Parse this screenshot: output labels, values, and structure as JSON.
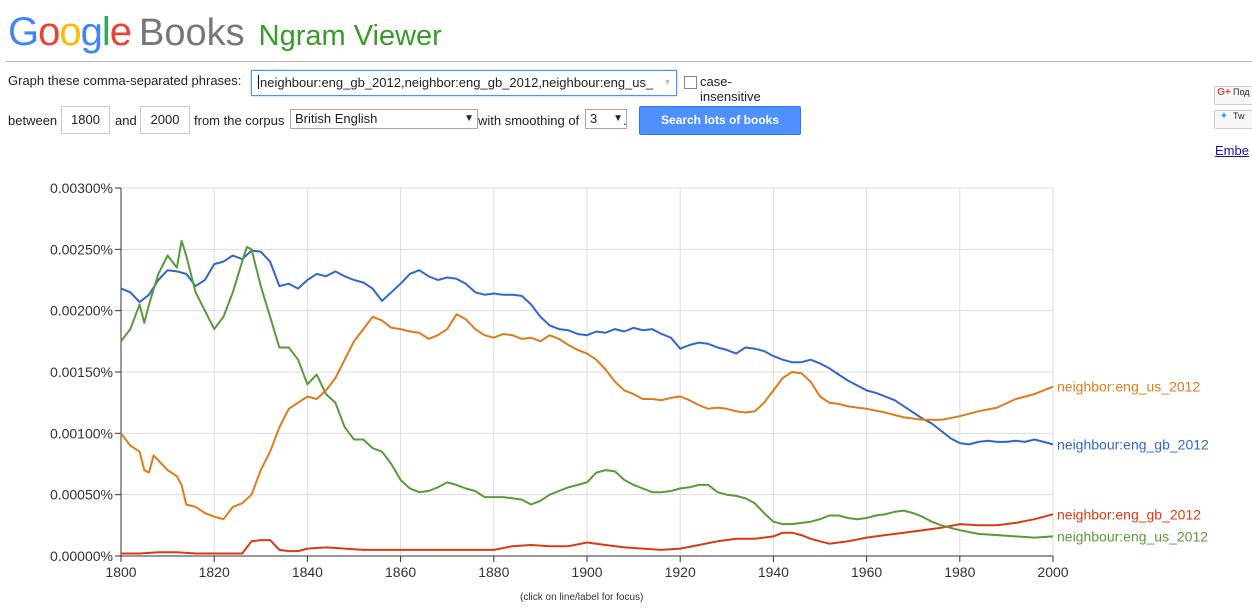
{
  "header": {
    "logo_google": "Google",
    "logo_books": "Books",
    "title": "Ngram Viewer"
  },
  "form": {
    "phrases_label": "Graph these comma-separated phrases:",
    "phrases_value": "neighbour:eng_gb_2012,neighbor:eng_gb_2012,neighbour:eng_us_",
    "case_insensitive_label": "case-insensitive",
    "case_insensitive_checked": false,
    "between_label": "between",
    "year_start": "1800",
    "and_label": "and",
    "year_end": "2000",
    "corpus_label": "from the corpus",
    "corpus_value": "British English",
    "smoothing_label": "with smoothing of",
    "smoothing_value": "3",
    "period": ".",
    "search_button": "Search lots of books"
  },
  "share": {
    "gplus_label": "Под",
    "twitter_label": "Tw",
    "embed_label": "Embe"
  },
  "chart_caption": "(click on line/label for focus)",
  "chart_data": {
    "type": "line",
    "xlim": [
      1800,
      2000
    ],
    "ylim": [
      0,
      0.003
    ],
    "grid": true,
    "x_ticks": [
      1800,
      1820,
      1840,
      1860,
      1880,
      1900,
      1920,
      1940,
      1960,
      1980,
      2000
    ],
    "y_ticks": [
      0,
      0.0005,
      0.001,
      0.0015,
      0.002,
      0.0025,
      0.003
    ],
    "y_tick_labels": [
      "0.00000%",
      "0.00050%",
      "0.00100%",
      "0.00150%",
      "0.00200%",
      "0.00250%",
      "0.00300%"
    ],
    "x_tick_labels": [
      "1800",
      "1820",
      "1840",
      "1860",
      "1880",
      "1900",
      "1920",
      "1940",
      "1960",
      "1980",
      "2000"
    ],
    "series": [
      {
        "name": "neighbour:eng_gb_2012",
        "color": "#3366cc",
        "x": [
          1800,
          1802,
          1804,
          1806,
          1808,
          1810,
          1812,
          1814,
          1816,
          1818,
          1820,
          1822,
          1824,
          1826,
          1828,
          1830,
          1832,
          1834,
          1836,
          1838,
          1840,
          1842,
          1844,
          1846,
          1848,
          1850,
          1852,
          1854,
          1856,
          1858,
          1860,
          1862,
          1864,
          1866,
          1868,
          1870,
          1872,
          1874,
          1876,
          1878,
          1880,
          1882,
          1884,
          1886,
          1888,
          1890,
          1892,
          1894,
          1896,
          1898,
          1900,
          1902,
          1904,
          1906,
          1908,
          1910,
          1912,
          1914,
          1916,
          1918,
          1920,
          1922,
          1924,
          1926,
          1928,
          1930,
          1932,
          1934,
          1936,
          1938,
          1940,
          1942,
          1944,
          1946,
          1948,
          1950,
          1952,
          1954,
          1956,
          1958,
          1960,
          1962,
          1964,
          1966,
          1968,
          1970,
          1972,
          1974,
          1976,
          1978,
          1980,
          1982,
          1984,
          1986,
          1988,
          1990,
          1992,
          1994,
          1996,
          1998,
          2000
        ],
        "values": [
          0.00218,
          0.00215,
          0.00207,
          0.00213,
          0.00225,
          0.00233,
          0.00232,
          0.0023,
          0.0022,
          0.00225,
          0.00238,
          0.0024,
          0.00245,
          0.00242,
          0.00249,
          0.00248,
          0.0024,
          0.0022,
          0.00222,
          0.00218,
          0.00225,
          0.0023,
          0.00228,
          0.00232,
          0.00228,
          0.00225,
          0.00223,
          0.00218,
          0.00208,
          0.00215,
          0.00222,
          0.0023,
          0.00233,
          0.00228,
          0.00225,
          0.00227,
          0.00226,
          0.00222,
          0.00215,
          0.00213,
          0.00214,
          0.00213,
          0.00213,
          0.00212,
          0.00205,
          0.00195,
          0.00188,
          0.00185,
          0.00184,
          0.00181,
          0.0018,
          0.00183,
          0.00182,
          0.00185,
          0.00183,
          0.00186,
          0.00184,
          0.00185,
          0.00181,
          0.00178,
          0.00169,
          0.00172,
          0.00174,
          0.00173,
          0.0017,
          0.00168,
          0.00165,
          0.0017,
          0.00169,
          0.00167,
          0.00163,
          0.0016,
          0.00158,
          0.00158,
          0.0016,
          0.00157,
          0.00153,
          0.00148,
          0.00143,
          0.00139,
          0.00135,
          0.00133,
          0.0013,
          0.00127,
          0.00122,
          0.00117,
          0.00112,
          0.00108,
          0.00102,
          0.00096,
          0.00092,
          0.00091,
          0.00093,
          0.00094,
          0.00093,
          0.00093,
          0.00094,
          0.00093,
          0.00095,
          0.00093,
          0.00091
        ]
      },
      {
        "name": "neighbor:eng_gb_2012",
        "color": "#dc3912",
        "x": [
          1800,
          1804,
          1808,
          1812,
          1816,
          1820,
          1824,
          1826,
          1828,
          1830,
          1832,
          1834,
          1836,
          1838,
          1840,
          1844,
          1848,
          1852,
          1856,
          1860,
          1864,
          1868,
          1872,
          1876,
          1880,
          1884,
          1888,
          1892,
          1896,
          1900,
          1904,
          1908,
          1912,
          1916,
          1920,
          1924,
          1928,
          1932,
          1936,
          1940,
          1942,
          1944,
          1946,
          1948,
          1950,
          1952,
          1954,
          1956,
          1960,
          1964,
          1968,
          1972,
          1976,
          1980,
          1984,
          1988,
          1992,
          1996,
          2000
        ],
        "values": [
          2e-05,
          2e-05,
          3e-05,
          3e-05,
          2e-05,
          2e-05,
          2e-05,
          2e-05,
          0.00012,
          0.00013,
          0.00013,
          5e-05,
          4e-05,
          4e-05,
          6e-05,
          7e-05,
          6e-05,
          5e-05,
          5e-05,
          5e-05,
          5e-05,
          5e-05,
          5e-05,
          5e-05,
          5e-05,
          8e-05,
          9e-05,
          8e-05,
          8e-05,
          0.00011,
          9e-05,
          7e-05,
          6e-05,
          5e-05,
          6e-05,
          9e-05,
          0.00012,
          0.00014,
          0.00014,
          0.00016,
          0.00019,
          0.00019,
          0.00017,
          0.00014,
          0.00012,
          0.0001,
          0.00011,
          0.00012,
          0.00015,
          0.00017,
          0.00019,
          0.00021,
          0.00023,
          0.00026,
          0.00025,
          0.00025,
          0.00027,
          0.0003,
          0.00034
        ]
      },
      {
        "name": "neighbour:eng_us_2012",
        "color": "#5b9a3c",
        "x": [
          1800,
          1802,
          1804,
          1805,
          1806,
          1808,
          1810,
          1812,
          1813,
          1814,
          1816,
          1818,
          1820,
          1822,
          1824,
          1826,
          1827,
          1828,
          1830,
          1832,
          1834,
          1836,
          1838,
          1840,
          1842,
          1844,
          1846,
          1848,
          1850,
          1852,
          1854,
          1856,
          1858,
          1860,
          1862,
          1864,
          1866,
          1868,
          1870,
          1872,
          1874,
          1876,
          1878,
          1880,
          1882,
          1884,
          1886,
          1888,
          1890,
          1892,
          1894,
          1896,
          1898,
          1900,
          1902,
          1904,
          1906,
          1908,
          1910,
          1912,
          1914,
          1916,
          1918,
          1920,
          1922,
          1924,
          1926,
          1928,
          1930,
          1932,
          1934,
          1936,
          1938,
          1940,
          1942,
          1944,
          1946,
          1948,
          1950,
          1952,
          1954,
          1956,
          1958,
          1960,
          1962,
          1964,
          1966,
          1968,
          1970,
          1972,
          1974,
          1976,
          1978,
          1980,
          1984,
          1988,
          1992,
          1996,
          2000
        ],
        "values": [
          0.00175,
          0.00185,
          0.00205,
          0.0019,
          0.00205,
          0.0023,
          0.00245,
          0.00235,
          0.00257,
          0.00245,
          0.00215,
          0.002,
          0.00185,
          0.00195,
          0.00215,
          0.0024,
          0.00252,
          0.0025,
          0.0022,
          0.00195,
          0.0017,
          0.0017,
          0.0016,
          0.0014,
          0.00148,
          0.00132,
          0.00125,
          0.00105,
          0.00095,
          0.00095,
          0.00088,
          0.00085,
          0.00075,
          0.00062,
          0.00055,
          0.00052,
          0.00053,
          0.00056,
          0.0006,
          0.00058,
          0.00055,
          0.00053,
          0.00048,
          0.00048,
          0.00048,
          0.00047,
          0.00046,
          0.00042,
          0.00045,
          0.0005,
          0.00053,
          0.00056,
          0.00058,
          0.0006,
          0.00068,
          0.0007,
          0.00069,
          0.00062,
          0.00058,
          0.00055,
          0.00052,
          0.00052,
          0.00053,
          0.00055,
          0.00056,
          0.00058,
          0.00058,
          0.00052,
          0.0005,
          0.00049,
          0.00047,
          0.00043,
          0.00035,
          0.00028,
          0.00026,
          0.00026,
          0.00027,
          0.00028,
          0.0003,
          0.00033,
          0.00033,
          0.00031,
          0.0003,
          0.00031,
          0.00033,
          0.00034,
          0.00036,
          0.00037,
          0.00035,
          0.00032,
          0.00028,
          0.00025,
          0.00023,
          0.00021,
          0.00018,
          0.00017,
          0.00016,
          0.00015,
          0.00016
        ]
      },
      {
        "name": "neighbor:eng_us_2012",
        "color": "#e07a1c",
        "x": [
          1800,
          1802,
          1804,
          1805,
          1806,
          1807,
          1808,
          1810,
          1812,
          1813,
          1814,
          1816,
          1818,
          1820,
          1822,
          1824,
          1826,
          1828,
          1830,
          1832,
          1834,
          1836,
          1838,
          1840,
          1842,
          1844,
          1846,
          1848,
          1850,
          1852,
          1854,
          1856,
          1858,
          1860,
          1862,
          1864,
          1866,
          1868,
          1870,
          1872,
          1874,
          1876,
          1878,
          1880,
          1882,
          1884,
          1886,
          1888,
          1890,
          1892,
          1894,
          1896,
          1898,
          1900,
          1902,
          1904,
          1906,
          1908,
          1910,
          1912,
          1914,
          1916,
          1918,
          1920,
          1922,
          1924,
          1926,
          1928,
          1930,
          1932,
          1934,
          1936,
          1938,
          1940,
          1942,
          1944,
          1946,
          1948,
          1950,
          1952,
          1954,
          1956,
          1958,
          1960,
          1964,
          1968,
          1972,
          1976,
          1980,
          1984,
          1988,
          1992,
          1996,
          2000
        ],
        "values": [
          0.001,
          0.0009,
          0.00085,
          0.0007,
          0.00068,
          0.00082,
          0.00078,
          0.0007,
          0.00065,
          0.00058,
          0.00042,
          0.0004,
          0.00035,
          0.00032,
          0.0003,
          0.0004,
          0.00043,
          0.0005,
          0.0007,
          0.00085,
          0.00105,
          0.0012,
          0.00125,
          0.0013,
          0.00128,
          0.00135,
          0.00145,
          0.0016,
          0.00175,
          0.00185,
          0.00195,
          0.00192,
          0.00186,
          0.00185,
          0.00183,
          0.00182,
          0.00177,
          0.0018,
          0.00185,
          0.00197,
          0.00193,
          0.00185,
          0.0018,
          0.00178,
          0.00181,
          0.0018,
          0.00177,
          0.00178,
          0.00175,
          0.0018,
          0.00177,
          0.00172,
          0.00168,
          0.00165,
          0.0016,
          0.00152,
          0.00142,
          0.00135,
          0.00132,
          0.00128,
          0.00128,
          0.00127,
          0.00129,
          0.0013,
          0.00127,
          0.00123,
          0.0012,
          0.00121,
          0.0012,
          0.00118,
          0.00117,
          0.00118,
          0.00125,
          0.00135,
          0.00145,
          0.0015,
          0.00149,
          0.00142,
          0.0013,
          0.00125,
          0.00124,
          0.00122,
          0.00121,
          0.0012,
          0.00117,
          0.00113,
          0.00111,
          0.00111,
          0.00114,
          0.00118,
          0.00121,
          0.00128,
          0.00132,
          0.00138
        ]
      }
    ]
  }
}
